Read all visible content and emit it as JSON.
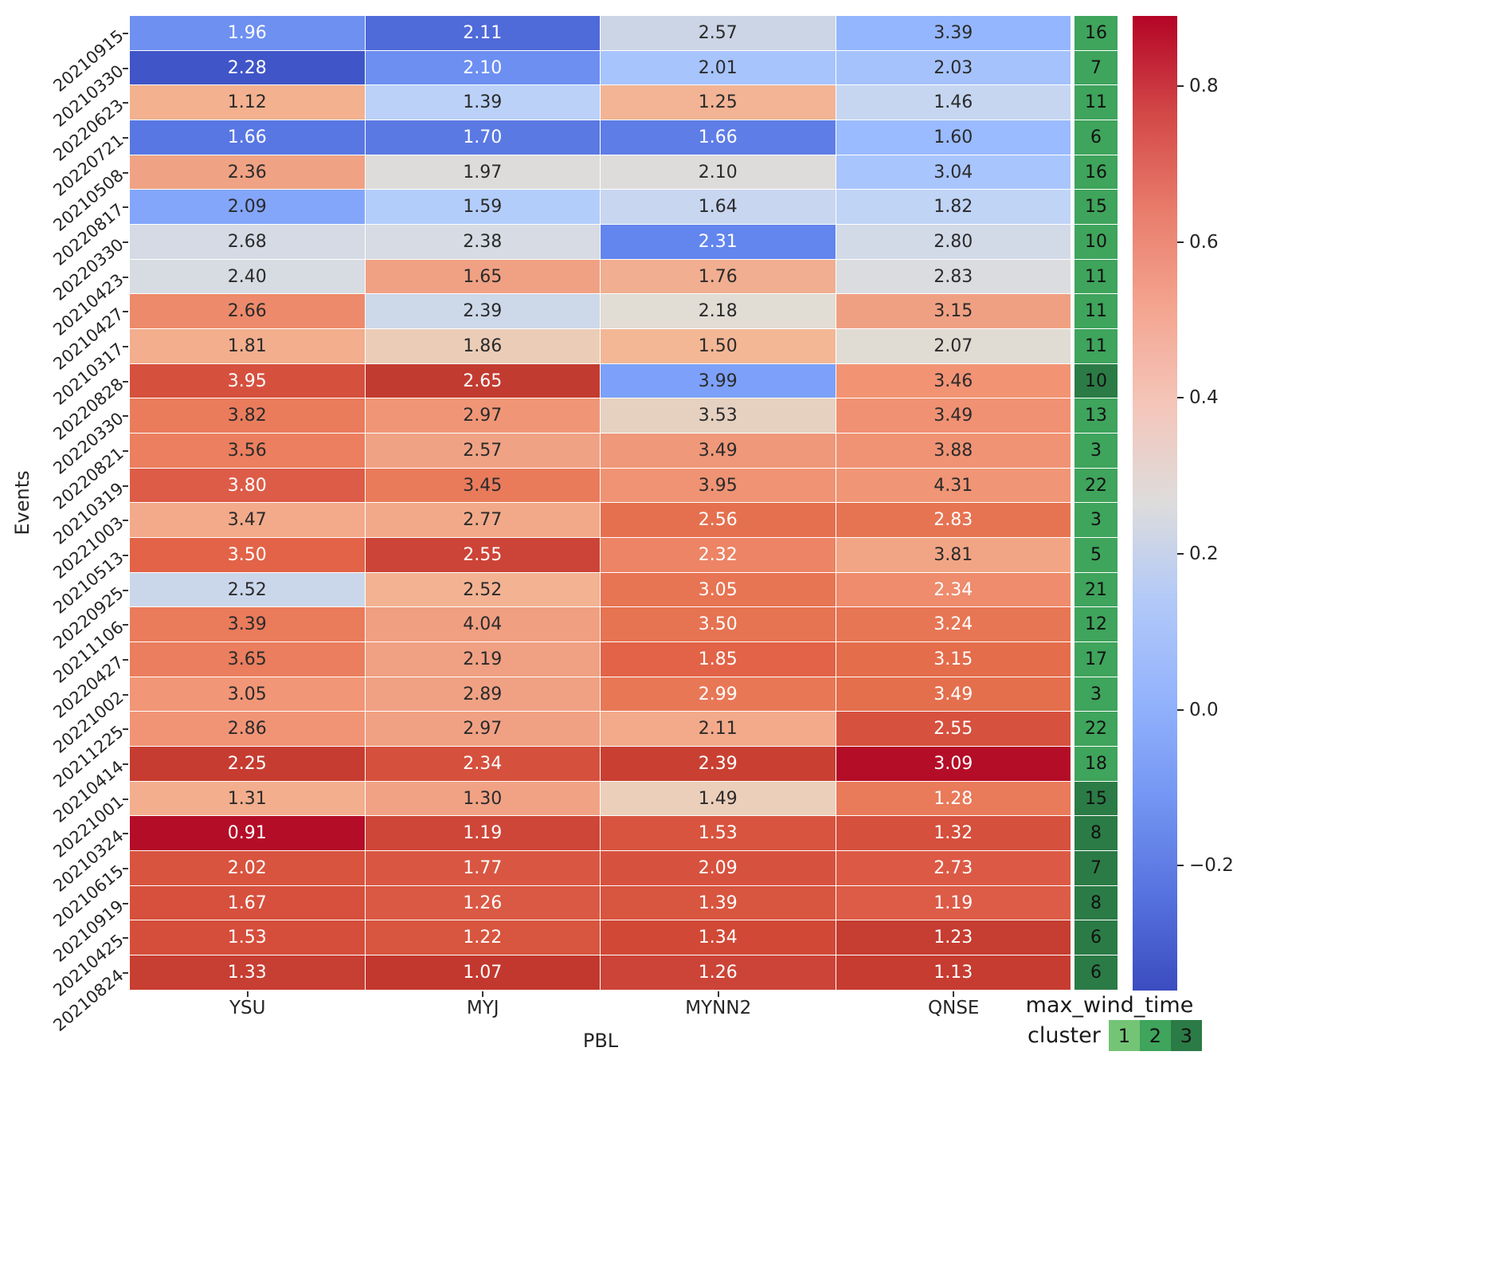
{
  "axes": {
    "ylabel": "Events",
    "xlabel": "PBL"
  },
  "wind_column": {
    "title": "max_wind_time"
  },
  "legend": {
    "title": "cluster",
    "items": [
      {
        "label": "1",
        "color": "#74c476"
      },
      {
        "label": "2",
        "color": "#3fa45c"
      },
      {
        "label": "3",
        "color": "#2b7b46"
      }
    ]
  },
  "cluster_colors": {
    "1": "#74c476",
    "2": "#3fa45c",
    "3": "#2b7b46"
  },
  "chart_data": {
    "type": "heatmap",
    "columns": [
      "YSU",
      "MYJ",
      "MYNN2",
      "QNSE"
    ],
    "rows": [
      {
        "event": "20210915",
        "values": [
          "1.96",
          "2.11",
          "2.57",
          "3.39"
        ],
        "max_wind_time": "16",
        "cluster": "2",
        "colors": [
          "#6d90f1",
          "#4f6ad9",
          "#ccd5e6",
          "#94b6fe"
        ],
        "text": "wwdd"
      },
      {
        "event": "20210330",
        "values": [
          "2.28",
          "2.10",
          "2.01",
          "2.03"
        ],
        "max_wind_time": "7",
        "cluster": "2",
        "colors": [
          "#4055c8",
          "#6c8ff1",
          "#a7c4fd",
          "#a5c2fd"
        ],
        "text": "wwdd"
      },
      {
        "event": "20220623",
        "values": [
          "1.12",
          "1.39",
          "1.25",
          "1.46"
        ],
        "max_wind_time": "11",
        "cluster": "2",
        "colors": [
          "#f3b18f",
          "#bbd1f8",
          "#f2b495",
          "#c6d6f1"
        ],
        "text": "dddd"
      },
      {
        "event": "20220721",
        "values": [
          "1.66",
          "1.70",
          "1.66",
          "1.60"
        ],
        "max_wind_time": "6",
        "cluster": "2",
        "colors": [
          "#5977e3",
          "#5b79e3",
          "#5e7de6",
          "#9abbff"
        ],
        "text": "wwwd"
      },
      {
        "event": "20210508",
        "values": [
          "2.36",
          "1.97",
          "2.10",
          "3.04"
        ],
        "max_wind_time": "16",
        "cluster": "2",
        "colors": [
          "#f0a284",
          "#dedcda",
          "#dedcdb",
          "#a9c5fd"
        ],
        "text": "dddd"
      },
      {
        "event": "20220817",
        "values": [
          "2.09",
          "1.59",
          "1.64",
          "1.82"
        ],
        "max_wind_time": "15",
        "cluster": "2",
        "colors": [
          "#83a6fb",
          "#b3cdfb",
          "#c8d6f0",
          "#c0d4f6"
        ],
        "text": "dddd"
      },
      {
        "event": "20220330",
        "values": [
          "2.68",
          "2.38",
          "2.31",
          "2.80"
        ],
        "max_wind_time": "10",
        "cluster": "2",
        "colors": [
          "#d5dae4",
          "#d6dbe4",
          "#6285ee",
          "#d2d9e7"
        ],
        "text": "ddwd"
      },
      {
        "event": "20210423",
        "values": [
          "2.40",
          "1.65",
          "1.76",
          "2.83"
        ],
        "max_wind_time": "11",
        "cluster": "2",
        "colors": [
          "#d7dbe2",
          "#f0a183",
          "#f1ae90",
          "#dadce0"
        ],
        "text": "dddd"
      },
      {
        "event": "20210427",
        "values": [
          "2.66",
          "2.39",
          "2.18",
          "3.15"
        ],
        "max_wind_time": "11",
        "cluster": "2",
        "colors": [
          "#ed8a6b",
          "#cdd8e9",
          "#e1dcd4",
          "#f0a082"
        ],
        "text": "dddd"
      },
      {
        "event": "20210317",
        "values": [
          "1.81",
          "1.86",
          "1.50",
          "2.07"
        ],
        "max_wind_time": "11",
        "cluster": "2",
        "colors": [
          "#f2ae8d",
          "#ebcdb7",
          "#f3b795",
          "#e0dbd3"
        ],
        "text": "dddd"
      },
      {
        "event": "20220828",
        "values": [
          "3.95",
          "2.65",
          "3.99",
          "3.46"
        ],
        "max_wind_time": "10",
        "cluster": "3",
        "colors": [
          "#d6503e",
          "#c23b30",
          "#7da1fa",
          "#f29374"
        ],
        "text": "wwdd"
      },
      {
        "event": "20220330",
        "values": [
          "3.82",
          "2.97",
          "3.53",
          "3.49"
        ],
        "max_wind_time": "13",
        "cluster": "2",
        "colors": [
          "#ea7c5c",
          "#f09677",
          "#e6d1c1",
          "#f09173"
        ],
        "text": "dddd"
      },
      {
        "event": "20220821",
        "values": [
          "3.56",
          "2.57",
          "3.49",
          "3.88"
        ],
        "max_wind_time": "3",
        "cluster": "2",
        "colors": [
          "#eb7f5f",
          "#f0a285",
          "#ef987a",
          "#f09374"
        ],
        "text": "dddd"
      },
      {
        "event": "20210319",
        "values": [
          "3.80",
          "3.45",
          "3.95",
          "4.31"
        ],
        "max_wind_time": "22",
        "cluster": "2",
        "colors": [
          "#dd5c47",
          "#e97b5b",
          "#ef9374",
          "#f09576"
        ],
        "text": "wddd"
      },
      {
        "event": "20221003",
        "values": [
          "3.47",
          "2.77",
          "2.56",
          "2.83"
        ],
        "max_wind_time": "3",
        "cluster": "2",
        "colors": [
          "#f2aa8a",
          "#f2a989",
          "#e5704f",
          "#e67452"
        ],
        "text": "ddww"
      },
      {
        "event": "20210513",
        "values": [
          "3.50",
          "2.55",
          "2.32",
          "3.81"
        ],
        "max_wind_time": "5",
        "cluster": "2",
        "colors": [
          "#e26348",
          "#cc4437",
          "#ec8465",
          "#f2a585"
        ],
        "text": "wwwd"
      },
      {
        "event": "20220925",
        "values": [
          "2.52",
          "2.52",
          "3.05",
          "2.34"
        ],
        "max_wind_time": "21",
        "cluster": "2",
        "colors": [
          "#cad7eb",
          "#f3b292",
          "#e77453",
          "#ee8c6d"
        ],
        "text": "ddww"
      },
      {
        "event": "20211106",
        "values": [
          "3.39",
          "4.04",
          "3.50",
          "3.24"
        ],
        "max_wind_time": "12",
        "cluster": "2",
        "colors": [
          "#ea7b5b",
          "#f09f81",
          "#e67351",
          "#e77654"
        ],
        "text": "ddww"
      },
      {
        "event": "20220427",
        "values": [
          "3.65",
          "2.19",
          "1.85",
          "3.15"
        ],
        "max_wind_time": "17",
        "cluster": "2",
        "colors": [
          "#ea7e5e",
          "#f0a083",
          "#e26347",
          "#e46d4b"
        ],
        "text": "ddww"
      },
      {
        "event": "20221002",
        "values": [
          "3.05",
          "2.89",
          "2.99",
          "3.49"
        ],
        "max_wind_time": "3",
        "cluster": "2",
        "colors": [
          "#f19677",
          "#f0a184",
          "#e87756",
          "#e46f4d"
        ],
        "text": "ddww"
      },
      {
        "event": "20211225",
        "values": [
          "2.86",
          "2.97",
          "2.11",
          "2.55"
        ],
        "max_wind_time": "22",
        "cluster": "2",
        "colors": [
          "#f19476",
          "#f1a183",
          "#f3aa8a",
          "#d6513e"
        ],
        "text": "dddw"
      },
      {
        "event": "20210414",
        "values": [
          "2.25",
          "2.34",
          "2.39",
          "3.09"
        ],
        "max_wind_time": "18",
        "cluster": "2",
        "colors": [
          "#c63c31",
          "#d5503d",
          "#c94033",
          "#b40d27"
        ],
        "text": "wwww"
      },
      {
        "event": "20221001",
        "values": [
          "1.31",
          "1.30",
          "1.49",
          "1.28"
        ],
        "max_wind_time": "15",
        "cluster": "3",
        "colors": [
          "#f3ae8d",
          "#f1a284",
          "#ebcfba",
          "#e97a5a"
        ],
        "text": "dddw"
      },
      {
        "event": "20210324",
        "values": [
          "0.91",
          "1.19",
          "1.53",
          "1.32"
        ],
        "max_wind_time": "8",
        "cluster": "3",
        "colors": [
          "#b40d27",
          "#ce4638",
          "#d8543f",
          "#d5503d"
        ],
        "text": "wwww"
      },
      {
        "event": "20210615",
        "values": [
          "2.02",
          "1.77",
          "2.09",
          "2.73"
        ],
        "max_wind_time": "7",
        "cluster": "3",
        "colors": [
          "#d8543f",
          "#d95742",
          "#d7523e",
          "#dc5a45"
        ],
        "text": "wwww"
      },
      {
        "event": "20210919",
        "values": [
          "1.67",
          "1.26",
          "1.39",
          "1.19"
        ],
        "max_wind_time": "8",
        "cluster": "3",
        "colors": [
          "#d6503d",
          "#da5944",
          "#d8553f",
          "#dc5c47"
        ],
        "text": "wwww"
      },
      {
        "event": "20210425",
        "values": [
          "1.53",
          "1.22",
          "1.34",
          "1.23"
        ],
        "max_wind_time": "6",
        "cluster": "3",
        "colors": [
          "#d54e3b",
          "#d8553f",
          "#d14936",
          "#c63d31"
        ],
        "text": "wwww"
      },
      {
        "event": "20210824",
        "values": [
          "1.33",
          "1.07",
          "1.26",
          "1.13"
        ],
        "max_wind_time": "6",
        "cluster": "3",
        "colors": [
          "#c73e32",
          "#c2382e",
          "#cc4437",
          "#c63c31"
        ],
        "text": "wwww"
      }
    ],
    "colorbar": {
      "vmax": 0.89,
      "vmin": -0.36,
      "ticks": [
        {
          "label": "0.8",
          "value": 0.8
        },
        {
          "label": "0.6",
          "value": 0.6
        },
        {
          "label": "0.4",
          "value": 0.4
        },
        {
          "label": "0.2",
          "value": 0.2
        },
        {
          "label": "0.0",
          "value": 0.0
        },
        {
          "label": "−0.2",
          "value": -0.2
        }
      ],
      "gradient": [
        "#b40426",
        "#d24847",
        "#e97c6b",
        "#f4a590",
        "#f4c6ba",
        "#dddcdc",
        "#b2c9f8",
        "#94b3fc",
        "#7596f3",
        "#5773df",
        "#3b4cc0"
      ]
    }
  }
}
